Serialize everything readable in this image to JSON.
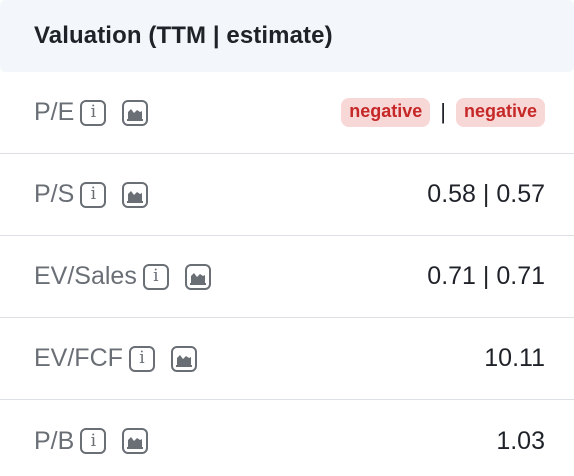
{
  "header": {
    "title": "Valuation (TTM | estimate)"
  },
  "icons": {
    "info_glyph": "i"
  },
  "rows": [
    {
      "label": "P/E",
      "value": "",
      "badge_ttm": "negative",
      "separator": "|",
      "badge_estimate": "negative"
    },
    {
      "label": "P/S",
      "value": "0.58 | 0.57"
    },
    {
      "label": "EV/Sales",
      "value": "0.71 | 0.71"
    },
    {
      "label": "EV/FCF",
      "value": "10.11"
    },
    {
      "label": "P/B",
      "value": "1.03"
    }
  ],
  "colors": {
    "header_bg": "#f3f6fa",
    "label": "#6a6f76",
    "value": "#1f2329",
    "negative_text": "#c62828",
    "negative_bg": "#f8d7d7",
    "divider": "#dcdfe4"
  }
}
